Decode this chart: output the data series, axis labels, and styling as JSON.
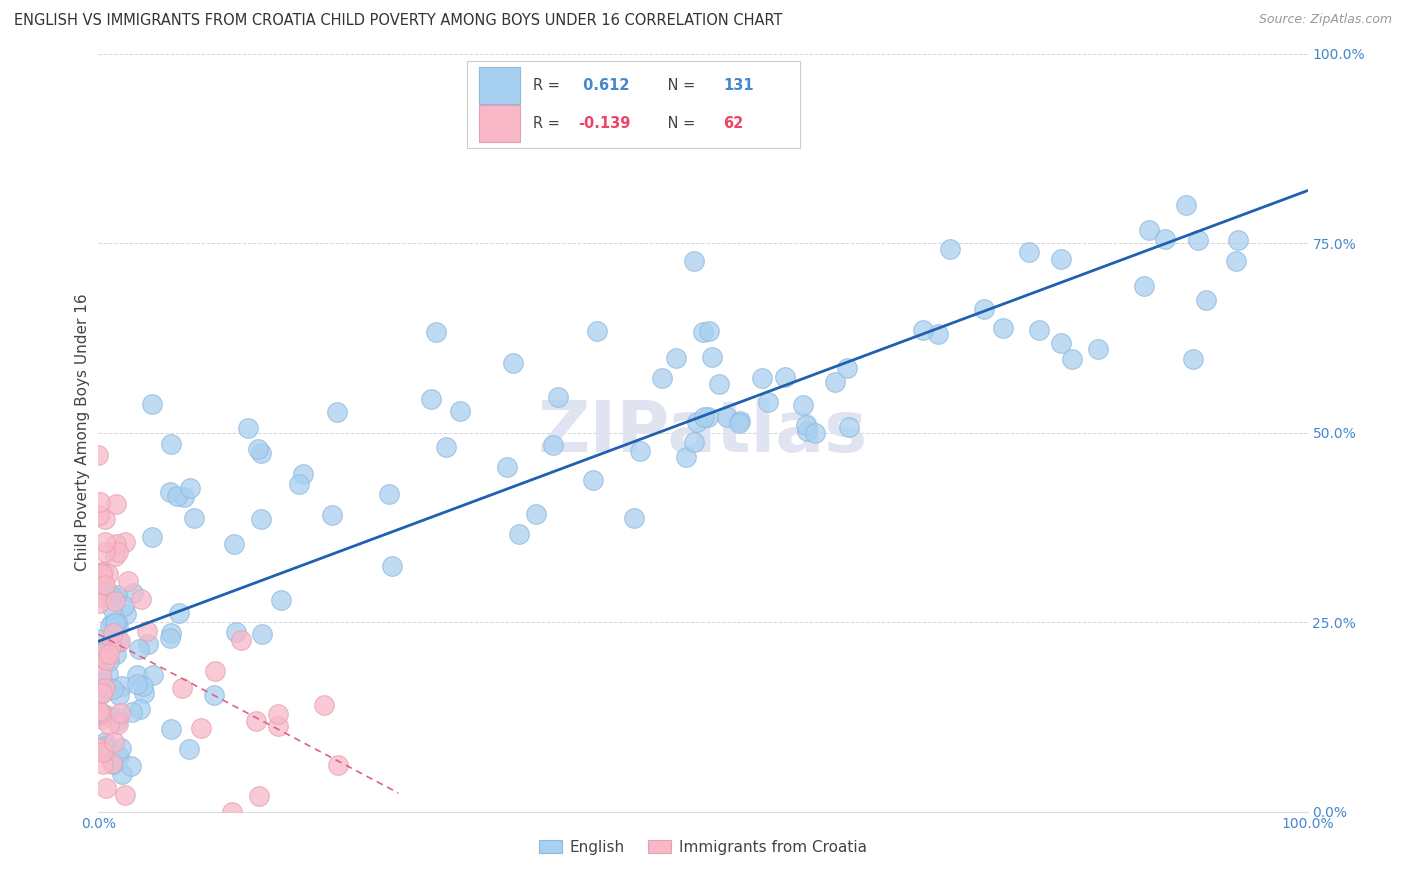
{
  "title": "ENGLISH VS IMMIGRANTS FROM CROATIA CHILD POVERTY AMONG BOYS UNDER 16 CORRELATION CHART",
  "source": "Source: ZipAtlas.com",
  "ylabel": "Child Poverty Among Boys Under 16",
  "legend_top": {
    "R_english": "0.612",
    "N_english": "131",
    "R_croatia": "-0.139",
    "N_croatia": "62"
  },
  "english_color": "#A8D0F0",
  "english_edge": "#90B8DC",
  "croatia_color": "#F8B8C8",
  "croatia_edge": "#E8A0B0",
  "trend_english_color": "#2060B0",
  "trend_croatia_color": "#E06080",
  "watermark_color": "#E0E4F0",
  "background_color": "#FFFFFF",
  "right_axis_color": "#4488CC",
  "grid_color": "#CCCCCC",
  "title_color": "#333333",
  "source_color": "#999999",
  "tick_color": "#888888"
}
